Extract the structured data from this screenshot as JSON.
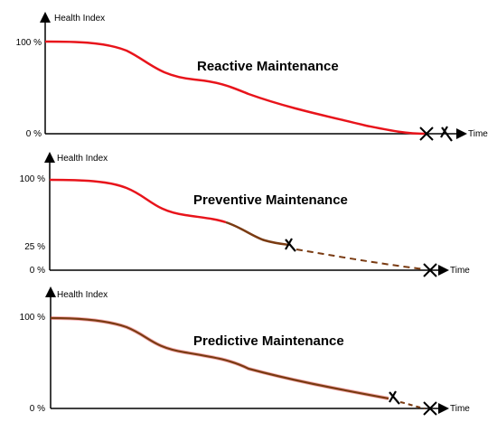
{
  "colors": {
    "healthy": "#e8141b",
    "degrading": "#7a3b12",
    "axis": "#000000"
  },
  "panels": [
    {
      "title": "Reactive Maintenance",
      "y_axis_label": "Health Index",
      "x_axis_label": "Time",
      "tick_top": "100 %",
      "tick_mid": "",
      "tick_bottom": "0 %"
    },
    {
      "title": "Preventive Maintenance",
      "y_axis_label": "Health Index",
      "x_axis_label": "Time",
      "tick_top": "100 %",
      "tick_mid": "25 %",
      "tick_bottom": "0 %"
    },
    {
      "title": "Predictive Maintenance",
      "y_axis_label": "Health Index",
      "x_axis_label": "Time",
      "tick_top": "100 %",
      "tick_mid": "",
      "tick_bottom": "0 %"
    }
  ],
  "icons": [
    "failure-x-icon",
    "wrench-tool-icon"
  ]
}
